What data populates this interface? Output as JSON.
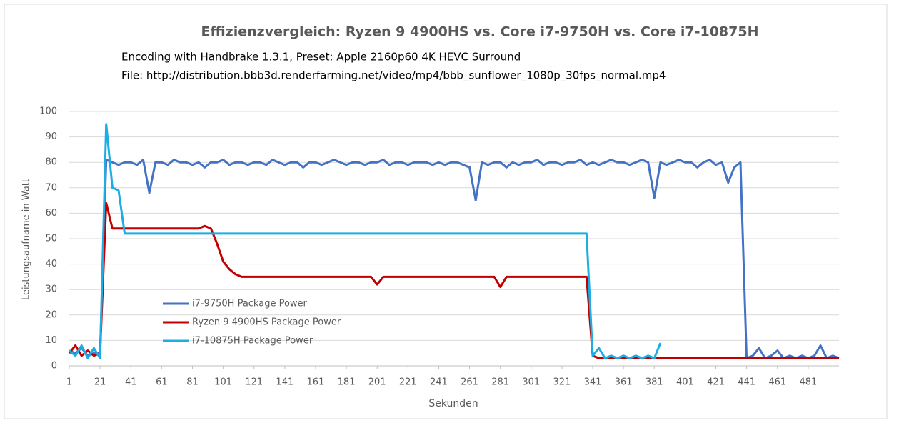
{
  "chart_data": {
    "type": "line",
    "title": "Effizienzvergleich: Ryzen 9 4900HS vs. Core i7-9750H vs. Core i7-10875H",
    "subtitle": [
      "Encoding with Handbrake 1.3.1, Preset: Apple 2160p60 4K HEVC Surround",
      "File: http://distribution.bbb3d.renderfarming.net/video/mp4/bbb_sunflower_1080p_30fps_normal.mp4"
    ],
    "x_label": "Sekunden",
    "y_label": "Leistungsaufname in Watt",
    "x": [
      1,
      5,
      9,
      13,
      17,
      21,
      25,
      29,
      33,
      37,
      41,
      45,
      49,
      53,
      57,
      61,
      65,
      69,
      73,
      77,
      81,
      85,
      89,
      93,
      97,
      101,
      105,
      109,
      113,
      117,
      121,
      125,
      129,
      133,
      137,
      141,
      145,
      149,
      153,
      157,
      161,
      165,
      169,
      173,
      177,
      181,
      185,
      189,
      193,
      197,
      201,
      205,
      209,
      213,
      217,
      221,
      225,
      229,
      233,
      237,
      241,
      245,
      249,
      253,
      257,
      261,
      265,
      269,
      273,
      277,
      281,
      285,
      289,
      293,
      297,
      301,
      305,
      309,
      313,
      317,
      321,
      325,
      329,
      333,
      337,
      341,
      345,
      349,
      353,
      357,
      361,
      365,
      369,
      373,
      377,
      381,
      385,
      389,
      393,
      397,
      401,
      405,
      409,
      413,
      417,
      421,
      425,
      429,
      433,
      437,
      441,
      445,
      449,
      453,
      457,
      461,
      465,
      469,
      473,
      477,
      481,
      485,
      489,
      493,
      497,
      501
    ],
    "xlim": [
      1,
      501
    ],
    "xticks": [
      1,
      21,
      41,
      61,
      81,
      101,
      121,
      141,
      161,
      181,
      201,
      221,
      241,
      261,
      281,
      301,
      321,
      341,
      361,
      381,
      401,
      421,
      441,
      461,
      481
    ],
    "ylim": [
      0,
      100
    ],
    "yticks": [
      0,
      10,
      20,
      30,
      40,
      50,
      60,
      70,
      80,
      90,
      100
    ],
    "grid": true,
    "legend": "lower-left",
    "series": [
      {
        "name": "i7-9750H Package Power",
        "color": "#4472c4",
        "values": [
          6,
          5,
          7,
          4,
          5,
          5,
          81,
          80,
          79,
          80,
          80,
          79,
          81,
          68,
          80,
          80,
          79,
          81,
          80,
          80,
          79,
          80,
          78,
          80,
          80,
          81,
          79,
          80,
          80,
          79,
          80,
          80,
          79,
          81,
          80,
          79,
          80,
          80,
          78,
          80,
          80,
          79,
          80,
          81,
          80,
          79,
          80,
          80,
          79,
          80,
          80,
          81,
          79,
          80,
          80,
          79,
          80,
          80,
          80,
          79,
          80,
          79,
          80,
          80,
          79,
          78,
          65,
          80,
          79,
          80,
          80,
          78,
          80,
          79,
          80,
          80,
          81,
          79,
          80,
          80,
          79,
          80,
          80,
          81,
          79,
          80,
          79,
          80,
          81,
          80,
          80,
          79,
          80,
          81,
          80,
          66,
          80,
          79,
          80,
          81,
          80,
          80,
          78,
          80,
          81,
          79,
          80,
          72,
          78,
          80,
          3,
          4,
          7,
          3,
          4,
          6,
          3,
          4,
          3,
          4,
          3,
          4,
          8,
          3,
          4,
          3
        ]
      },
      {
        "name": "Ryzen 9 4900HS Package Power",
        "color": "#c00000",
        "values": [
          5,
          8,
          4,
          6,
          4,
          5,
          64,
          54,
          54,
          54,
          54,
          54,
          54,
          54,
          54,
          54,
          54,
          54,
          54,
          54,
          54,
          54,
          55,
          54,
          48,
          41,
          38,
          36,
          35,
          35,
          35,
          35,
          35,
          35,
          35,
          35,
          35,
          35,
          35,
          35,
          35,
          35,
          35,
          35,
          35,
          35,
          35,
          35,
          35,
          35,
          32,
          35,
          35,
          35,
          35,
          35,
          35,
          35,
          35,
          35,
          35,
          35,
          35,
          35,
          35,
          35,
          35,
          35,
          35,
          35,
          31,
          35,
          35,
          35,
          35,
          35,
          35,
          35,
          35,
          35,
          35,
          35,
          35,
          35,
          35,
          4,
          3,
          3,
          3,
          3,
          3,
          3,
          3,
          3,
          3,
          3,
          3,
          3,
          3,
          3,
          3,
          3,
          3,
          3,
          3,
          3,
          3,
          3,
          3,
          3,
          3,
          3,
          3,
          3,
          3,
          3,
          3,
          3,
          3,
          3,
          3,
          3,
          3,
          3,
          3,
          3
        ]
      },
      {
        "name": "i7-10875H Package Power",
        "color": "#1cade4",
        "values": [
          6,
          4,
          8,
          3,
          7,
          3,
          95,
          70,
          69,
          52,
          52,
          52,
          52,
          52,
          52,
          52,
          52,
          52,
          52,
          52,
          52,
          52,
          52,
          52,
          52,
          52,
          52,
          52,
          52,
          52,
          52,
          52,
          52,
          52,
          52,
          52,
          52,
          52,
          52,
          52,
          52,
          52,
          52,
          52,
          52,
          52,
          52,
          52,
          52,
          52,
          52,
          52,
          52,
          52,
          52,
          52,
          52,
          52,
          52,
          52,
          52,
          52,
          52,
          52,
          52,
          52,
          52,
          52,
          52,
          52,
          52,
          52,
          52,
          52,
          52,
          52,
          52,
          52,
          52,
          52,
          52,
          52,
          52,
          52,
          52,
          4,
          7,
          3,
          4,
          3,
          4,
          3,
          4,
          3,
          4,
          3,
          9,
          null,
          null,
          null,
          null,
          null,
          null,
          null,
          null,
          null,
          null,
          null,
          null,
          null,
          null,
          null,
          null,
          null,
          null,
          null,
          null,
          null,
          null,
          null,
          null,
          null,
          null,
          null,
          null,
          null
        ]
      }
    ]
  }
}
